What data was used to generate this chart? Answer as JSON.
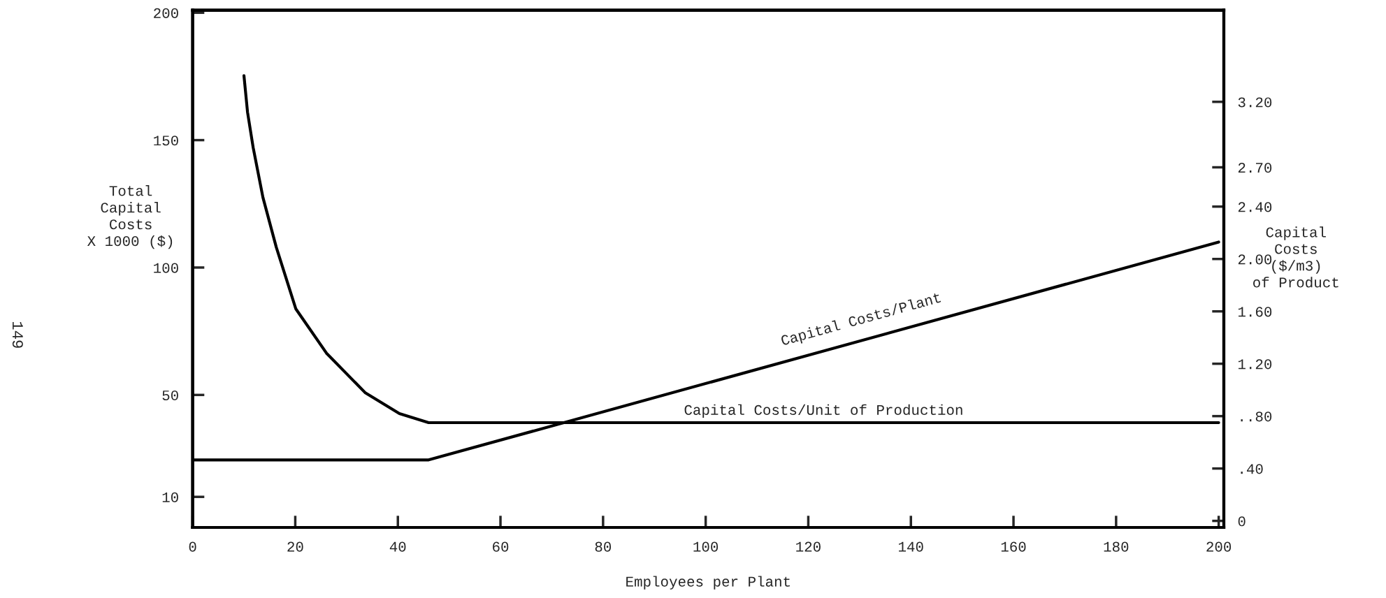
{
  "chart_data": {
    "type": "line",
    "xlabel": "Employees per Plant",
    "ylabel": "Total\nCapital\nCosts\nX 1000 ($)",
    "y2label": "Capital\nCosts\n($/m3)\nof Product",
    "xlim": [
      0,
      201
    ],
    "ylim": [
      -2,
      201
    ],
    "y2lim": [
      -0.05,
      3.9
    ],
    "xticks": [
      0,
      20,
      40,
      60,
      80,
      100,
      120,
      140,
      160,
      180,
      200
    ],
    "yticks": [
      10,
      50,
      100,
      150,
      200
    ],
    "y2ticks": [
      0,
      {
        "value": 0.4,
        "label": ".40"
      },
      {
        "value": 0.8,
        "label": "..80"
      },
      {
        "value": 1.2,
        "label": "1.20"
      },
      {
        "value": 1.6,
        "label": "1.60"
      },
      {
        "value": 2.0,
        "label": "2.00"
      },
      {
        "value": 2.4,
        "label": "2.40"
      },
      {
        "value": 2.7,
        "label": "2.70"
      },
      {
        "value": 3.2,
        "label": "3.20"
      }
    ],
    "grid": false,
    "legend": false,
    "marker": "none",
    "line_style": "solid",
    "series": [
      {
        "name": "Capital Costs/Plant",
        "color": "#000000",
        "x": [
          0,
          46,
          200
        ],
        "values": [
          24.5,
          24.5,
          110
        ]
      },
      {
        "name": "Capital Costs/Unit of Production",
        "color": "#000000",
        "axis": "y2",
        "x": [
          10.0,
          10.7,
          11.8,
          13.7,
          16.3,
          20.1,
          26.1,
          33.6,
          40.3,
          46.0,
          200
        ],
        "values": [
          3.4,
          3.12,
          2.85,
          2.47,
          2.09,
          1.62,
          1.28,
          0.98,
          0.82,
          0.75,
          0.75
        ]
      }
    ],
    "annotations": [
      "149"
    ]
  }
}
